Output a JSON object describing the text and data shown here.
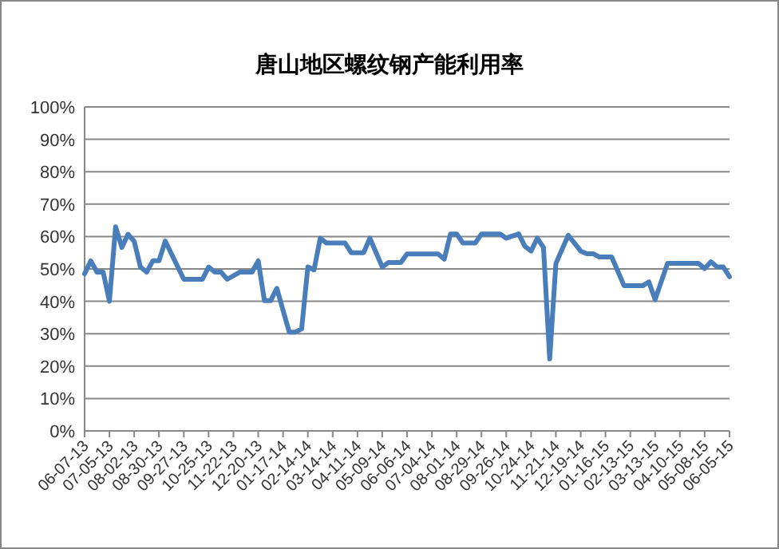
{
  "chart_data": {
    "type": "line",
    "title": "唐山地区螺纹钢产能利用率",
    "x": [
      "2013-06-07",
      "2013-06-14",
      "2013-06-21",
      "2013-06-28",
      "2013-07-05",
      "2013-07-12",
      "2013-07-19",
      "2013-07-26",
      "2013-08-02",
      "2013-08-09",
      "2013-08-16",
      "2013-08-23",
      "2013-08-30",
      "2013-09-06",
      "2013-09-27",
      "2013-10-18",
      "2013-10-25",
      "2013-11-01",
      "2013-11-08",
      "2013-11-15",
      "2013-11-29",
      "2013-12-13",
      "2013-12-20",
      "2013-12-27",
      "2014-01-03",
      "2014-01-10",
      "2014-01-24",
      "2014-01-31",
      "2014-02-07",
      "2014-02-14",
      "2014-02-21",
      "2014-02-28",
      "2014-03-07",
      "2014-03-28",
      "2014-04-04",
      "2014-04-18",
      "2014-04-25",
      "2014-05-09",
      "2014-05-16",
      "2014-05-30",
      "2014-06-06",
      "2014-07-11",
      "2014-07-18",
      "2014-07-25",
      "2014-08-01",
      "2014-08-08",
      "2014-08-22",
      "2014-08-29",
      "2014-09-19",
      "2014-09-26",
      "2014-10-10",
      "2014-10-17",
      "2014-10-24",
      "2014-10-31",
      "2014-11-07",
      "2014-11-14",
      "2014-11-21",
      "2014-12-05",
      "2014-12-19",
      "2014-12-26",
      "2015-01-02",
      "2015-01-09",
      "2015-01-23",
      "2015-02-06",
      "2015-02-27",
      "2015-03-06",
      "2015-03-13",
      "2015-03-27",
      "2015-05-01",
      "2015-05-08",
      "2015-05-15",
      "2015-05-22",
      "2015-05-29",
      "2015-06-05"
    ],
    "series": [
      {
        "color": "#4a7ebb",
        "values": [
          48.5,
          52.5,
          49,
          49,
          40,
          63,
          56.6,
          60.7,
          58.5,
          50.6,
          49,
          52.5,
          52.5,
          58.6,
          46.8,
          46.8,
          50.6,
          49,
          49,
          46.8,
          49,
          49,
          52.5,
          40.2,
          40.2,
          44,
          30.5,
          30.5,
          31.5,
          50.6,
          49.7,
          59.5,
          58,
          58,
          55,
          55,
          59.5,
          50.6,
          52,
          52,
          54.6,
          54.6,
          53,
          60.8,
          60.8,
          58,
          58,
          60.8,
          60.8,
          59.5,
          60.8,
          57,
          55.5,
          59.5,
          56.6,
          22.2,
          51.7,
          60.4,
          55.5,
          54.7,
          54.7,
          53.7,
          53.7,
          44.8,
          44.8,
          46,
          40.5,
          51.7,
          51.7,
          50.1,
          52.2,
          50.6,
          50.6,
          47.6
        ]
      }
    ],
    "xlim": [
      "2013-06-07",
      "2015-06-05"
    ],
    "xticks": [
      {
        "value": "2013-06-07",
        "label": "06-07-13"
      },
      {
        "value": "2013-07-05",
        "label": "07-05-13"
      },
      {
        "value": "2013-08-02",
        "label": "08-02-13"
      },
      {
        "value": "2013-08-30",
        "label": "08-30-13"
      },
      {
        "value": "2013-09-27",
        "label": "09-27-13"
      },
      {
        "value": "2013-10-25",
        "label": "10-25-13"
      },
      {
        "value": "2013-11-22",
        "label": "11-22-13"
      },
      {
        "value": "2013-12-20",
        "label": "12-20-13"
      },
      {
        "value": "2014-01-17",
        "label": "01-17-14"
      },
      {
        "value": "2014-02-14",
        "label": "02-14-14"
      },
      {
        "value": "2014-03-14",
        "label": "03-14-14"
      },
      {
        "value": "2014-04-11",
        "label": "04-11-14"
      },
      {
        "value": "2014-05-09",
        "label": "05-09-14"
      },
      {
        "value": "2014-06-06",
        "label": "06-06-14"
      },
      {
        "value": "2014-07-04",
        "label": "07-04-14"
      },
      {
        "value": "2014-08-01",
        "label": "08-01-14"
      },
      {
        "value": "2014-08-29",
        "label": "08-29-14"
      },
      {
        "value": "2014-09-26",
        "label": "09-26-14"
      },
      {
        "value": "2014-10-24",
        "label": "10-24-14"
      },
      {
        "value": "2014-11-21",
        "label": "11-21-14"
      },
      {
        "value": "2014-12-19",
        "label": "12-19-14"
      },
      {
        "value": "2015-01-16",
        "label": "01-16-15"
      },
      {
        "value": "2015-02-13",
        "label": "02-13-15"
      },
      {
        "value": "2015-03-13",
        "label": "03-13-15"
      },
      {
        "value": "2015-04-10",
        "label": "04-10-15"
      },
      {
        "value": "2015-05-08",
        "label": "05-08-15"
      },
      {
        "value": "2015-06-05",
        "label": "06-05-15"
      }
    ],
    "ylim": [
      0,
      100
    ],
    "yticks": [
      {
        "value": 0,
        "label": "0%"
      },
      {
        "value": 10,
        "label": "10%"
      },
      {
        "value": 20,
        "label": "20%"
      },
      {
        "value": 30,
        "label": "30%"
      },
      {
        "value": 40,
        "label": "40%"
      },
      {
        "value": 50,
        "label": "50%"
      },
      {
        "value": 60,
        "label": "60%"
      },
      {
        "value": 70,
        "label": "70%"
      },
      {
        "value": 80,
        "label": "80%"
      },
      {
        "value": 90,
        "label": "90%"
      },
      {
        "value": 100,
        "label": "100%"
      }
    ],
    "grid": "y",
    "marker": "none",
    "line_style": "solid"
  }
}
